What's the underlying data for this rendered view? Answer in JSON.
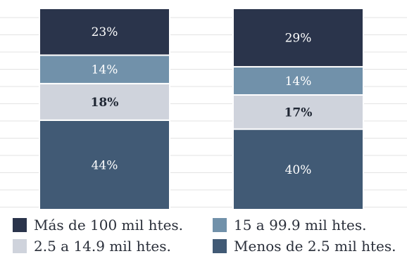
{
  "chart_data": {
    "type": "bar",
    "stacked": true,
    "percent": true,
    "categories": [
      "",
      ""
    ],
    "ylim": [
      0,
      100
    ],
    "grid": true,
    "legend_position": "bottom",
    "series": [
      {
        "name": "Menos de 2.5 mil htes.",
        "color": "#415a75",
        "values": [
          44,
          40
        ],
        "labels": [
          "44%",
          "40%"
        ]
      },
      {
        "name": "2.5 a 14.9 mil htes.",
        "color": "#cfd3dc",
        "values": [
          18,
          17
        ],
        "labels": [
          "18%",
          "17%"
        ]
      },
      {
        "name": "15 a 99.9 mil htes.",
        "color": "#7191aa",
        "values": [
          14,
          14
        ],
        "labels": [
          "14%",
          "14%"
        ]
      },
      {
        "name": "Más de 100 mil htes.",
        "color": "#2a344b",
        "values": [
          23,
          29
        ],
        "labels": [
          "23%",
          "29%"
        ]
      }
    ]
  }
}
